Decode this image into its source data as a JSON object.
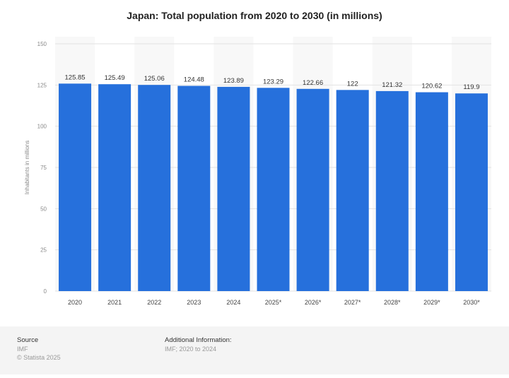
{
  "chart_data": {
    "type": "bar",
    "title": "Japan: Total population from 2020 to 2030 (in millions)",
    "ylabel": "Inhabitants in millions",
    "xlabel": "",
    "categories": [
      "2020",
      "2021",
      "2022",
      "2023",
      "2024",
      "2025*",
      "2026*",
      "2027*",
      "2028*",
      "2029*",
      "2030*"
    ],
    "values": [
      125.85,
      125.49,
      125.06,
      124.48,
      123.89,
      123.29,
      122.66,
      122,
      121.32,
      120.62,
      119.9
    ],
    "value_labels": [
      "125.85",
      "125.49",
      "125.06",
      "124.48",
      "123.89",
      "123.29",
      "122.66",
      "122",
      "121.32",
      "120.62",
      "119.9"
    ],
    "ylim": [
      0,
      150
    ],
    "yticks": [
      0,
      25,
      50,
      75,
      100,
      125,
      150
    ],
    "grid": true,
    "bar_color": "#2670dc"
  },
  "footer": {
    "source_label": "Source",
    "source": "IMF",
    "copyright": "© Statista 2025",
    "additional_label": "Additional Information:",
    "additional": "IMF; 2020 to 2024"
  }
}
